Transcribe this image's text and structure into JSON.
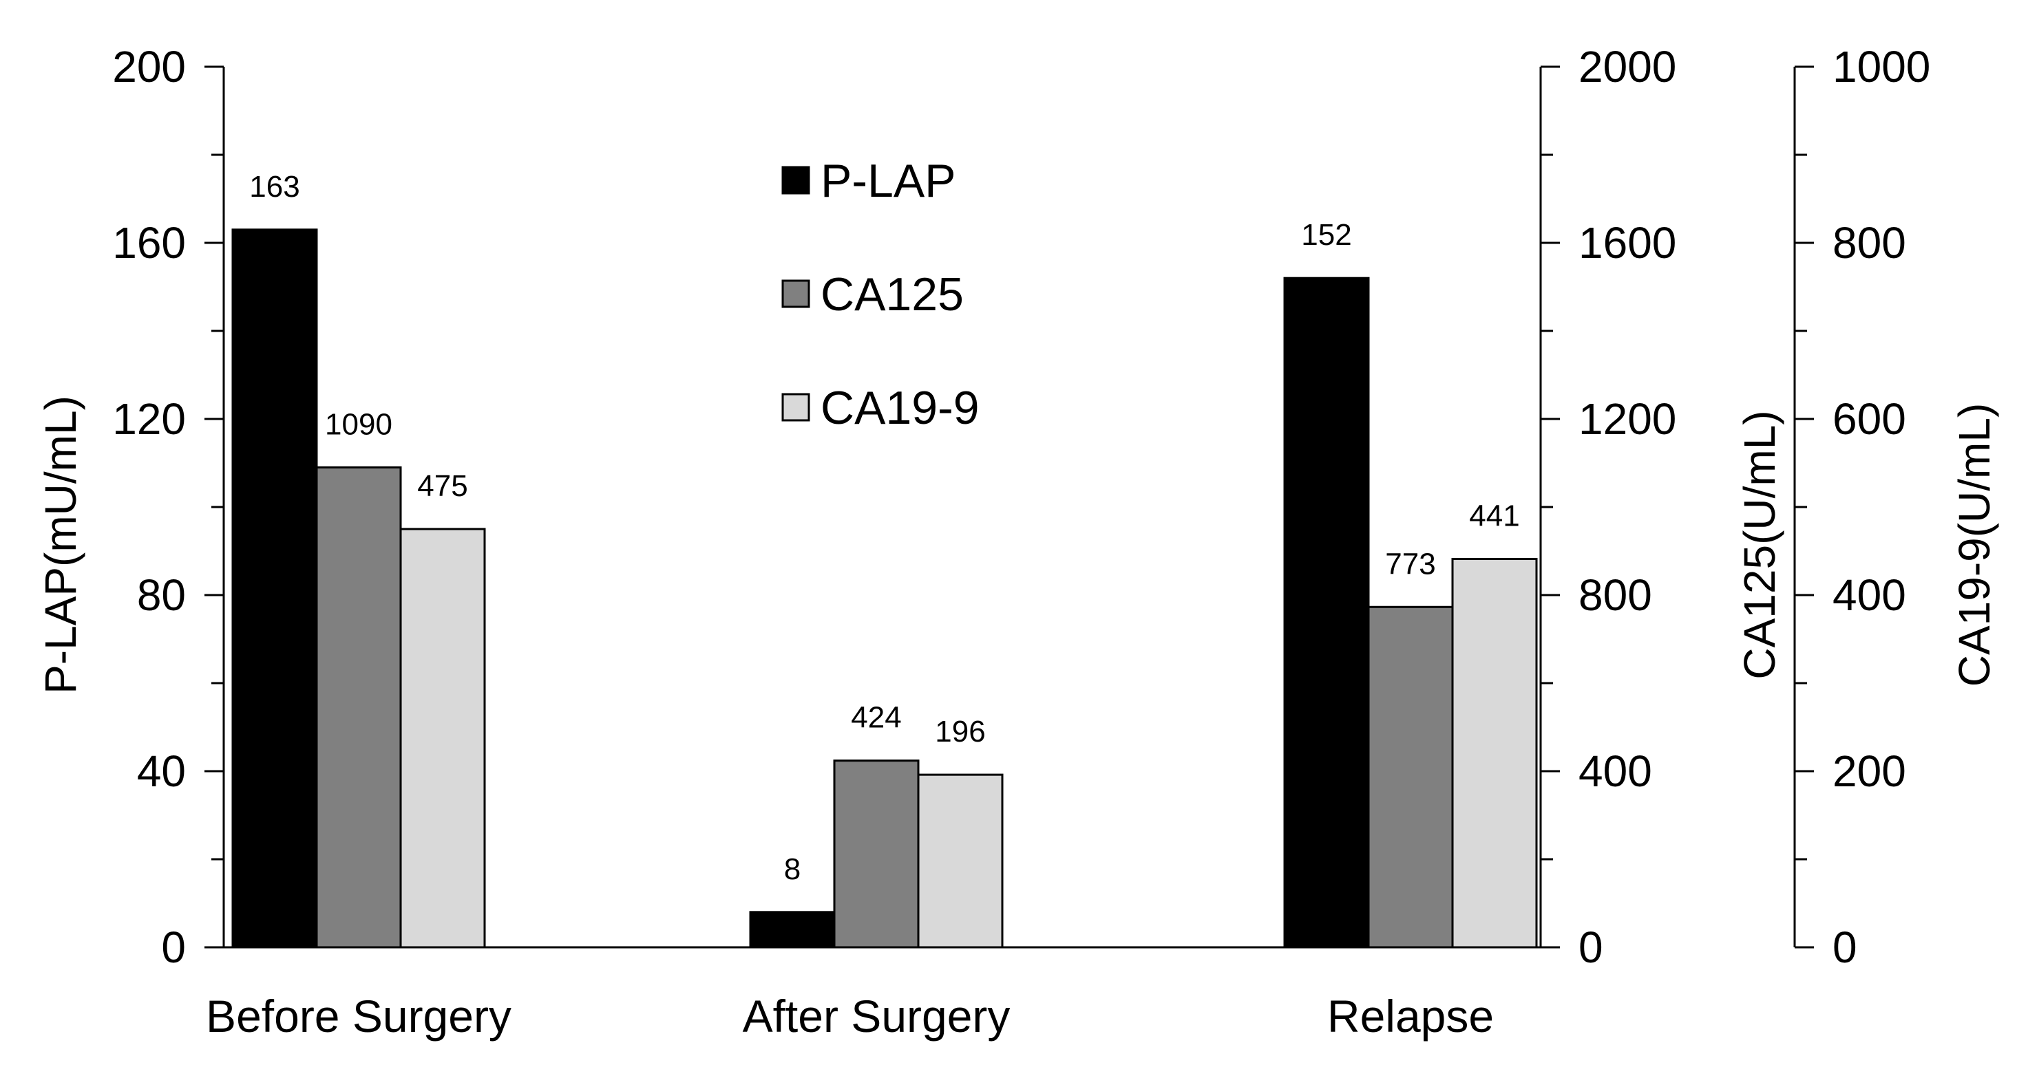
{
  "chart_data": {
    "type": "bar",
    "categories": [
      "Before Surgery",
      "After Surgery",
      "Relapse"
    ],
    "series": [
      {
        "name": "P-LAP",
        "axis": "left",
        "color": "#000000",
        "values": [
          163,
          8,
          152
        ],
        "labels": [
          "163",
          "8",
          "152"
        ]
      },
      {
        "name": "CA125",
        "axis": "right1",
        "color": "#808080",
        "values": [
          1090,
          424,
          773
        ],
        "labels": [
          "1090",
          "424",
          "773"
        ]
      },
      {
        "name": "CA19-9",
        "axis": "right2",
        "color": "#d9d9d9",
        "values": [
          475,
          196,
          441
        ],
        "labels": [
          "475",
          "196",
          "441"
        ]
      }
    ],
    "axes": {
      "left": {
        "label": "P-LAP(mU/mL)",
        "ylim": [
          0,
          200
        ],
        "ticks": [
          0,
          40,
          80,
          120,
          160,
          200
        ],
        "minor_step": 20
      },
      "right1": {
        "label": "CA125(U/mL)",
        "ylim": [
          0,
          2000
        ],
        "ticks": [
          0,
          400,
          800,
          1200,
          1600,
          2000
        ],
        "minor_step": 200
      },
      "right2": {
        "label": "CA19-9(U/mL)",
        "ylim": [
          0,
          1000
        ],
        "ticks": [
          0,
          200,
          400,
          600,
          800,
          1000
        ],
        "minor_step": 100
      }
    },
    "legend": {
      "position": "upper-center",
      "entries": [
        "P-LAP",
        "CA125",
        "CA19-9"
      ]
    },
    "grid": false
  }
}
